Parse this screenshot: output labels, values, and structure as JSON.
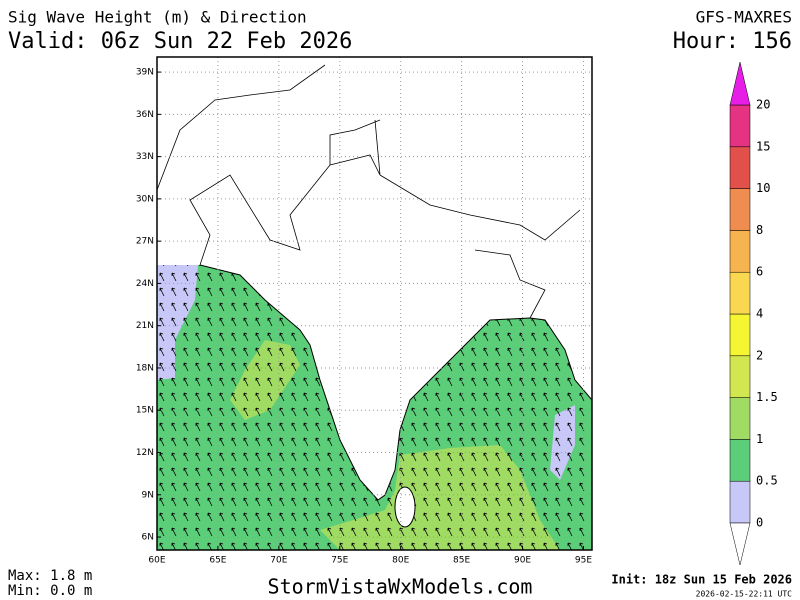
{
  "header": {
    "title": "Sig Wave Height (m) & Direction",
    "valid": "Valid: 06z Sun 22 Feb 2026",
    "model": "GFS-MAXRES",
    "hour": "Hour: 156"
  },
  "map": {
    "lonlim": [
      60,
      95.7
    ],
    "latlim": [
      5.08,
      40.07
    ],
    "lonticks": [
      {
        "value": 60,
        "label": "60E"
      },
      {
        "value": 65,
        "label": "65E"
      },
      {
        "value": 70,
        "label": "70E"
      },
      {
        "value": 75,
        "label": "75E"
      },
      {
        "value": 80,
        "label": "80E"
      },
      {
        "value": 85,
        "label": "85E"
      },
      {
        "value": 90,
        "label": "90E"
      },
      {
        "value": 95,
        "label": "95E"
      }
    ],
    "latticks": [
      {
        "value": 6,
        "label": "6N"
      },
      {
        "value": 9,
        "label": "9N"
      },
      {
        "value": 12,
        "label": "12N"
      },
      {
        "value": 15,
        "label": "15N"
      },
      {
        "value": 18,
        "label": "18N"
      },
      {
        "value": 21,
        "label": "21N"
      },
      {
        "value": 24,
        "label": "24N"
      },
      {
        "value": 27,
        "label": "27N"
      },
      {
        "value": 30,
        "label": "30N"
      },
      {
        "value": 33,
        "label": "33N"
      },
      {
        "value": 36,
        "label": "36N"
      },
      {
        "value": 39,
        "label": "39N"
      }
    ]
  },
  "colorbar": {
    "levels": [
      0,
      0.5,
      1,
      1.5,
      2,
      4,
      6,
      8,
      10,
      15,
      20
    ],
    "colors": [
      "#c8c8f8",
      "#5ccd78",
      "#a0dc64",
      "#d2e650",
      "#f5f532",
      "#fad750",
      "#f5b450",
      "#ef8c50",
      "#e1504b",
      "#e63282",
      "#e61ee6"
    ]
  },
  "footer": {
    "max": "Max: 1.8 m",
    "min": "Min: 0.0 m",
    "site": "StormVistaWxModels.com",
    "init": "Init: 18z Sun 15 Feb 2026",
    "stamp": "2026-02-15-22:11 UTC"
  }
}
